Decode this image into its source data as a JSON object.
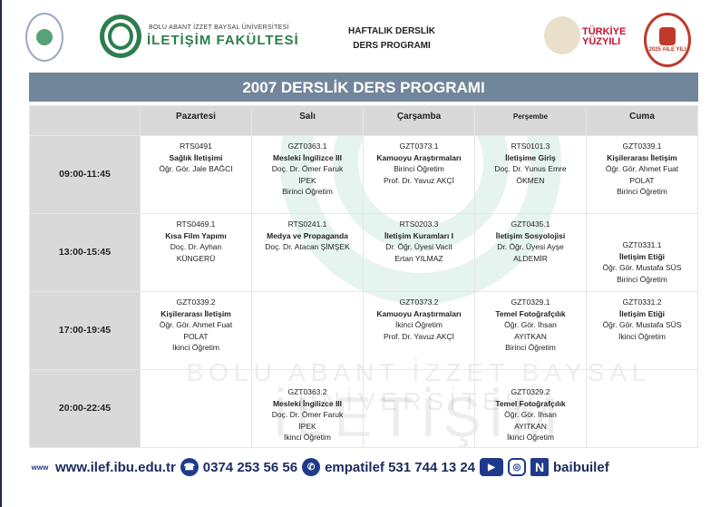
{
  "header": {
    "university_small": "BOLU ABANT İZZET BAYSAL ÜNİVERSİTESİ",
    "faculty": "İLETİŞİM FAKÜLTESİ",
    "doc_title_line1": "HAFTALIK DERSLİK",
    "doc_title_line2": "DERS PROGRAMI",
    "turkiye_line1": "TÜRKİYE",
    "turkiye_line2": "YÜZYILI",
    "aile_logo_text": "2025 AİLE YILI"
  },
  "title": "2007 DERSLİK DERS PROGRAMI",
  "days": [
    "Pazartesi",
    "Salı",
    "Çarşamba",
    "Perşembe",
    "Cuma"
  ],
  "rows": [
    {
      "time": "09:00-11:45",
      "cells": [
        {
          "code": "RTS0491",
          "course": "Sağlık İletişimi",
          "lines": [
            "Öğr. Gör. Jale BAĞCI"
          ]
        },
        {
          "code": "GZT0363.1",
          "course": "Mesleki İngilizce III",
          "lines": [
            "Doç. Dr. Ömer Faruk",
            "İPEK",
            "Birinci Öğretim"
          ]
        },
        {
          "code": "GZT0373.1",
          "course": "Kamuoyu Araştırmaları",
          "lines": [
            "Birinci Öğretim",
            "Prof. Dr. Yavuz AKÇİ"
          ]
        },
        {
          "code": "RTS0101.3",
          "course": "İletişime Giriş",
          "lines": [
            "Doç. Dr. Yunus Emre",
            "ÖKMEN"
          ]
        },
        {
          "code": "GZT0339.1",
          "course": "Kişilerarası İletişim",
          "lines": [
            "Öğr. Gör. Ahmet Fuat",
            "POLAT",
            "Birinci Öğretim"
          ]
        }
      ]
    },
    {
      "time": "13:00-15:45",
      "cells": [
        {
          "code": "RTS0469.1",
          "course": "Kısa Film Yapımı",
          "lines": [
            "Doç. Dr. Ayhan",
            "KÜNGERÜ"
          ]
        },
        {
          "code": "RTS0241.1",
          "course": "Medya ve Propaganda",
          "lines": [
            "Doç. Dr. Atacan ŞİMŞEK"
          ]
        },
        {
          "code": "RTS0203.3",
          "course": "İletişim Kuramları I",
          "lines": [
            "Dr. Öğr. Üyesi Vacit",
            "Ertan YILMAZ"
          ]
        },
        {
          "code": "GZT0435.1",
          "course": "İletişim Sosyolojisi",
          "lines": [
            "Dr. Öğr. Üyesi Ayşe",
            "ALDEMİR"
          ]
        },
        {
          "code": "GZT0331.1",
          "course": "İletişim Etiği",
          "lines": [
            "Öğr. Gör. Mustafa SÜS",
            "Birinci Öğretim"
          ]
        }
      ]
    },
    {
      "time": "17:00-19:45",
      "cells": [
        {
          "code": "GZT0339.2",
          "course": "Kişilerarası İletişim",
          "lines": [
            "Öğr. Gör. Ahmet Fuat",
            "POLAT",
            "İkinci Öğretim"
          ]
        },
        null,
        {
          "code": "GZT0373.2",
          "course": "Kamuoyu Araştırmaları",
          "lines": [
            "İkinci Öğretim",
            "Prof. Dr. Yavuz AKÇİ"
          ]
        },
        {
          "code": "GZT0329.1",
          "course": "Temel Fotoğrafçılık",
          "lines": [
            "Öğr. Gör. İhsan",
            "AYITKAN",
            "Birinci Öğretim"
          ]
        },
        {
          "code": "GZT0331.2",
          "course": "İletişim Etiği",
          "lines": [
            "Öğr. Gör. Mustafa SÜS",
            "İkinci Öğretim"
          ]
        }
      ]
    },
    {
      "time": "20:00-22:45",
      "cells": [
        null,
        {
          "code": "GZT0363.2",
          "course": "Mesleki İngilizce III",
          "lines": [
            "Doç. Dr. Ömer Faruk",
            "İPEK",
            "İkinci Öğretim"
          ]
        },
        null,
        {
          "code": "GZT0329.2",
          "course": "Temel Fotoğrafçılık",
          "lines": [
            "Öğr. Gör. İhsan",
            "AYITKAN",
            "İkinci Öğretim"
          ]
        },
        null
      ]
    }
  ],
  "watermark": {
    "line1": "BOLU ABANT İZZET BAYSAL ÜNİVERSİTESİ",
    "line2": "İLETİŞİM FAKÜLTESİ"
  },
  "footer": {
    "website": "www.ilef.ibu.edu.tr",
    "phone": "0374 253 56 56",
    "whatsapp": "empatilef 531 744 13 24",
    "social_handle": "baibuilef",
    "www_icon_text": "www",
    "accent": "#1f3a8a"
  }
}
